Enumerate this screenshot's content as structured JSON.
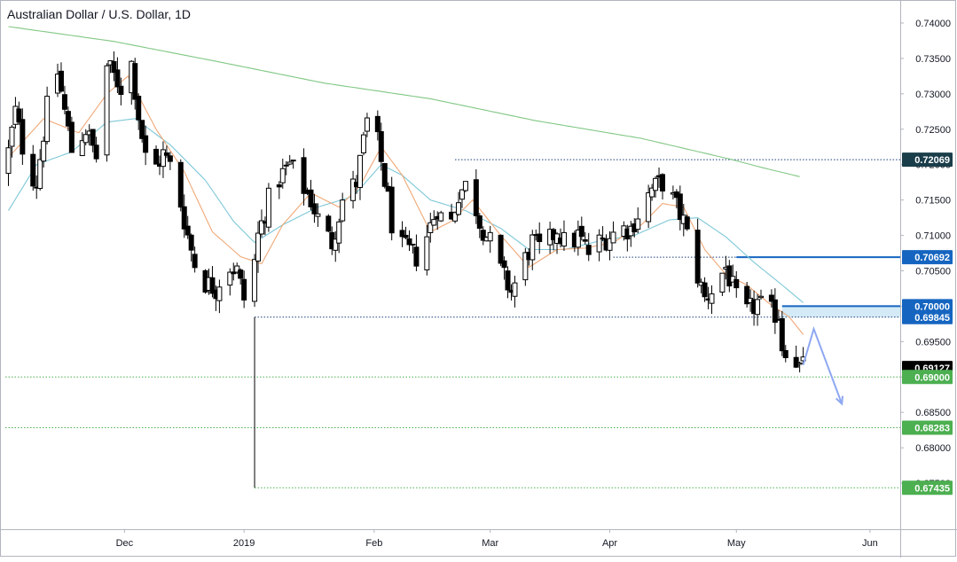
{
  "chart_data": {
    "type": "candlestick",
    "title": "Australian Dollar / U.S. Dollar, 1D",
    "y_range": [
      0.6685,
      0.7425
    ],
    "y_ticks": [
      {
        "v": 0.74,
        "label": "0.74000"
      },
      {
        "v": 0.735,
        "label": "0.73500"
      },
      {
        "v": 0.73,
        "label": "0.73000"
      },
      {
        "v": 0.725,
        "label": "0.72500"
      },
      {
        "v": 0.72,
        "label": "0.72000"
      },
      {
        "v": 0.715,
        "label": "0.71500"
      },
      {
        "v": 0.71,
        "label": "0.71000"
      },
      {
        "v": 0.705,
        "label": "0.70500"
      },
      {
        "v": 0.7,
        "label": "0.70000"
      },
      {
        "v": 0.695,
        "label": "0.69500"
      },
      {
        "v": 0.69,
        "label": "0.69000"
      },
      {
        "v": 0.685,
        "label": "0.68500"
      },
      {
        "v": 0.68,
        "label": "0.68000"
      },
      {
        "v": 0.675,
        "label": "0.67500"
      }
    ],
    "x_ticks": [
      {
        "i": 33,
        "label": "Dec"
      },
      {
        "i": 67,
        "label": "2019"
      },
      {
        "i": 104,
        "label": "Feb"
      },
      {
        "i": 137,
        "label": "Mar"
      },
      {
        "i": 171,
        "label": "Apr"
      },
      {
        "i": 207,
        "label": "May"
      },
      {
        "i": 245,
        "label": "Jun"
      }
    ],
    "price_labels": [
      {
        "v": 0.72069,
        "label": "0.72069",
        "color": "#1a3d4a"
      },
      {
        "v": 0.70692,
        "label": "0.70692",
        "color": "#1565c0"
      },
      {
        "v": 0.7,
        "label": "0.70000",
        "color": "#1565c0"
      },
      {
        "v": 0.69845,
        "label": "0.69845",
        "color": "#1565c0"
      },
      {
        "v": 0.69127,
        "label": "0.69127",
        "color": "#000000"
      },
      {
        "v": 0.69,
        "label": "0.69000",
        "color": "#4caf50"
      },
      {
        "v": 0.68283,
        "label": "0.68283",
        "color": "#4caf50"
      },
      {
        "v": 0.67435,
        "label": "0.67435",
        "color": "#4caf50"
      }
    ],
    "levels": [
      {
        "v": 0.72069,
        "from": 127,
        "style": "dotted",
        "color": "#1a3d7c"
      },
      {
        "v": 0.70692,
        "from": 172,
        "style": "dotted",
        "color": "#1a3d7c"
      },
      {
        "v": 0.69845,
        "from": 70,
        "style": "dotted",
        "color": "#1a3d7c"
      },
      {
        "v": 0.69,
        "from": 0,
        "style": "dotted",
        "color": "#4caf50"
      },
      {
        "v": 0.68283,
        "from": 0,
        "style": "dotted",
        "color": "#4caf50"
      },
      {
        "v": 0.67435,
        "from": 70,
        "style": "dotted",
        "color": "#4caf50"
      },
      {
        "v": 0.70692,
        "from": 207,
        "style": "solid",
        "color": "#1565c0"
      },
      {
        "v": 0.7,
        "from": 220,
        "style": "solid",
        "color": "#1565c0"
      }
    ],
    "zone": {
      "from": 220,
      "top": 0.7,
      "bottom": 0.69845,
      "color": "#cfe8f5"
    },
    "vline": {
      "i": 70,
      "top": 0.69845,
      "bottom": 0.67435
    },
    "projection": [
      {
        "i": 226,
        "v": 0.6917
      },
      {
        "i": 229,
        "v": 0.6968
      },
      {
        "i": 237,
        "v": 0.6862
      }
    ],
    "ma200": [
      {
        "i": 0,
        "v": 0.7395
      },
      {
        "i": 30,
        "v": 0.7374
      },
      {
        "i": 60,
        "v": 0.7345
      },
      {
        "i": 90,
        "v": 0.7315
      },
      {
        "i": 120,
        "v": 0.7293
      },
      {
        "i": 150,
        "v": 0.7262
      },
      {
        "i": 180,
        "v": 0.7237
      },
      {
        "i": 205,
        "v": 0.7208
      },
      {
        "i": 215,
        "v": 0.7195
      },
      {
        "i": 225,
        "v": 0.7183
      }
    ],
    "ema_slow": [
      {
        "i": 0,
        "v": 0.7135
      },
      {
        "i": 8,
        "v": 0.72
      },
      {
        "i": 18,
        "v": 0.7218
      },
      {
        "i": 28,
        "v": 0.726
      },
      {
        "i": 36,
        "v": 0.7265
      },
      {
        "i": 46,
        "v": 0.7228
      },
      {
        "i": 56,
        "v": 0.7178
      },
      {
        "i": 64,
        "v": 0.712
      },
      {
        "i": 70,
        "v": 0.709
      },
      {
        "i": 78,
        "v": 0.7115
      },
      {
        "i": 88,
        "v": 0.714
      },
      {
        "i": 98,
        "v": 0.7155
      },
      {
        "i": 106,
        "v": 0.72
      },
      {
        "i": 112,
        "v": 0.7185
      },
      {
        "i": 120,
        "v": 0.715
      },
      {
        "i": 130,
        "v": 0.7135
      },
      {
        "i": 140,
        "v": 0.711
      },
      {
        "i": 148,
        "v": 0.708
      },
      {
        "i": 158,
        "v": 0.708
      },
      {
        "i": 168,
        "v": 0.7092
      },
      {
        "i": 178,
        "v": 0.71
      },
      {
        "i": 188,
        "v": 0.7122
      },
      {
        "i": 196,
        "v": 0.7125
      },
      {
        "i": 204,
        "v": 0.7098
      },
      {
        "i": 212,
        "v": 0.7062
      },
      {
        "i": 220,
        "v": 0.703
      },
      {
        "i": 226,
        "v": 0.7005
      }
    ],
    "ema_fast": [
      {
        "i": 0,
        "v": 0.721
      },
      {
        "i": 10,
        "v": 0.7265
      },
      {
        "i": 20,
        "v": 0.7245
      },
      {
        "i": 28,
        "v": 0.73
      },
      {
        "i": 34,
        "v": 0.7325
      },
      {
        "i": 42,
        "v": 0.725
      },
      {
        "i": 50,
        "v": 0.719
      },
      {
        "i": 58,
        "v": 0.7105
      },
      {
        "i": 66,
        "v": 0.707
      },
      {
        "i": 72,
        "v": 0.706
      },
      {
        "i": 78,
        "v": 0.7115
      },
      {
        "i": 86,
        "v": 0.716
      },
      {
        "i": 94,
        "v": 0.714
      },
      {
        "i": 100,
        "v": 0.717
      },
      {
        "i": 106,
        "v": 0.7225
      },
      {
        "i": 112,
        "v": 0.7185
      },
      {
        "i": 120,
        "v": 0.7105
      },
      {
        "i": 126,
        "v": 0.712
      },
      {
        "i": 132,
        "v": 0.715
      },
      {
        "i": 140,
        "v": 0.71
      },
      {
        "i": 148,
        "v": 0.7055
      },
      {
        "i": 156,
        "v": 0.708
      },
      {
        "i": 164,
        "v": 0.7082
      },
      {
        "i": 172,
        "v": 0.709
      },
      {
        "i": 180,
        "v": 0.7115
      },
      {
        "i": 186,
        "v": 0.7145
      },
      {
        "i": 192,
        "v": 0.714
      },
      {
        "i": 198,
        "v": 0.708
      },
      {
        "i": 204,
        "v": 0.7045
      },
      {
        "i": 210,
        "v": 0.703
      },
      {
        "i": 216,
        "v": 0.7005
      },
      {
        "i": 222,
        "v": 0.6985
      },
      {
        "i": 226,
        "v": 0.696
      }
    ],
    "anchors": [
      {
        "i": 0,
        "v": 0.719
      },
      {
        "i": 3,
        "v": 0.7275
      },
      {
        "i": 6,
        "v": 0.72
      },
      {
        "i": 9,
        "v": 0.7175
      },
      {
        "i": 12,
        "v": 0.728
      },
      {
        "i": 15,
        "v": 0.733
      },
      {
        "i": 19,
        "v": 0.722
      },
      {
        "i": 23,
        "v": 0.725
      },
      {
        "i": 26,
        "v": 0.721
      },
      {
        "i": 29,
        "v": 0.734
      },
      {
        "i": 33,
        "v": 0.731
      },
      {
        "i": 35,
        "v": 0.738
      },
      {
        "i": 38,
        "v": 0.727
      },
      {
        "i": 41,
        "v": 0.718
      },
      {
        "i": 45,
        "v": 0.7215
      },
      {
        "i": 48,
        "v": 0.719
      },
      {
        "i": 52,
        "v": 0.71
      },
      {
        "i": 55,
        "v": 0.704
      },
      {
        "i": 60,
        "v": 0.7025
      },
      {
        "i": 63,
        "v": 0.706
      },
      {
        "i": 66,
        "v": 0.705
      },
      {
        "i": 69,
        "v": 0.699
      },
      {
        "i": 72,
        "v": 0.71
      },
      {
        "i": 75,
        "v": 0.715
      },
      {
        "i": 78,
        "v": 0.718
      },
      {
        "i": 81,
        "v": 0.72
      },
      {
        "i": 84,
        "v": 0.7175
      },
      {
        "i": 87,
        "v": 0.715
      },
      {
        "i": 90,
        "v": 0.711
      },
      {
        "i": 93,
        "v": 0.709
      },
      {
        "i": 96,
        "v": 0.715
      },
      {
        "i": 100,
        "v": 0.7175
      },
      {
        "i": 103,
        "v": 0.726
      },
      {
        "i": 106,
        "v": 0.723
      },
      {
        "i": 109,
        "v": 0.715
      },
      {
        "i": 111,
        "v": 0.7085
      },
      {
        "i": 114,
        "v": 0.708
      },
      {
        "i": 117,
        "v": 0.707
      },
      {
        "i": 120,
        "v": 0.71
      },
      {
        "i": 123,
        "v": 0.714
      },
      {
        "i": 126,
        "v": 0.71
      },
      {
        "i": 129,
        "v": 0.716
      },
      {
        "i": 132,
        "v": 0.7175
      },
      {
        "i": 135,
        "v": 0.712
      },
      {
        "i": 138,
        "v": 0.709
      },
      {
        "i": 141,
        "v": 0.705
      },
      {
        "i": 144,
        "v": 0.702
      },
      {
        "i": 147,
        "v": 0.7055
      },
      {
        "i": 150,
        "v": 0.709
      },
      {
        "i": 153,
        "v": 0.7075
      },
      {
        "i": 157,
        "v": 0.711
      },
      {
        "i": 160,
        "v": 0.708
      },
      {
        "i": 163,
        "v": 0.71
      },
      {
        "i": 166,
        "v": 0.7075
      },
      {
        "i": 169,
        "v": 0.709
      },
      {
        "i": 172,
        "v": 0.71
      },
      {
        "i": 175,
        "v": 0.711
      },
      {
        "i": 178,
        "v": 0.711
      },
      {
        "i": 181,
        "v": 0.714
      },
      {
        "i": 184,
        "v": 0.7165
      },
      {
        "i": 187,
        "v": 0.7175
      },
      {
        "i": 190,
        "v": 0.715
      },
      {
        "i": 193,
        "v": 0.712
      },
      {
        "i": 196,
        "v": 0.706
      },
      {
        "i": 199,
        "v": 0.701
      },
      {
        "i": 202,
        "v": 0.703
      },
      {
        "i": 205,
        "v": 0.7055
      },
      {
        "i": 208,
        "v": 0.701
      },
      {
        "i": 211,
        "v": 0.699
      },
      {
        "i": 214,
        "v": 0.7005
      },
      {
        "i": 217,
        "v": 0.699
      },
      {
        "i": 220,
        "v": 0.699
      },
      {
        "i": 221,
        "v": 0.6945
      },
      {
        "i": 224,
        "v": 0.6935
      },
      {
        "i": 226,
        "v": 0.6913
      }
    ]
  }
}
